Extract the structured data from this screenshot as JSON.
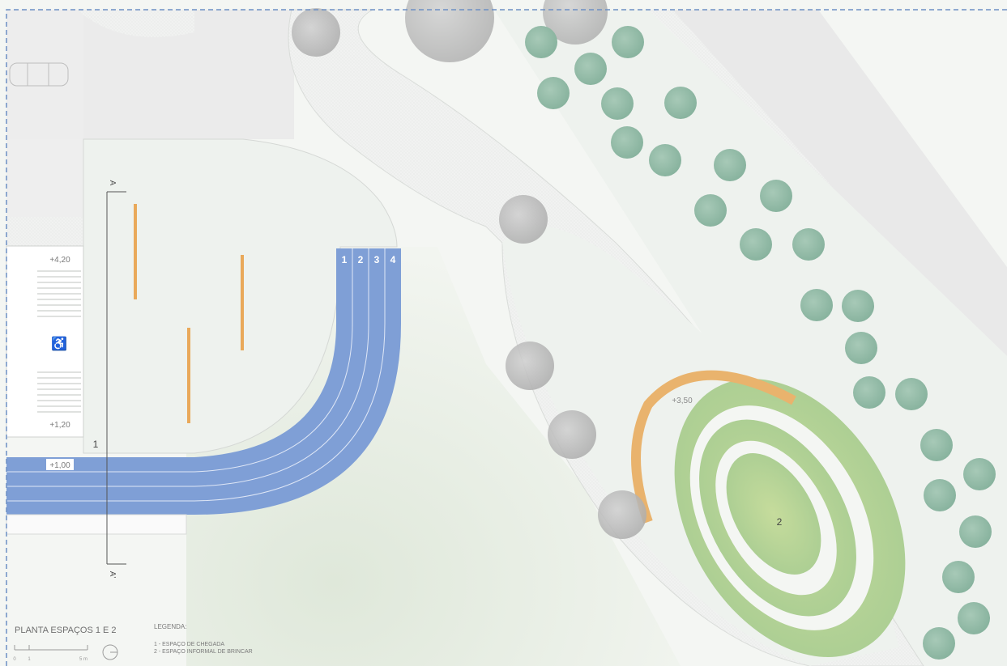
{
  "plan": {
    "title": "PLANTA ESPAÇOS 1 E 2",
    "legend_heading": "LEGENDA:",
    "legend_items": [
      "1 - ESPAÇO DE CHEGADA",
      "2 - ESPAÇO INFORMAL DE BRINCAR"
    ],
    "scale_labels": [
      "0",
      "1",
      "5 m"
    ]
  },
  "levels": [
    "+4,20",
    "+1,20",
    "+1,00",
    "+3,50"
  ],
  "lane_numbers": [
    "1",
    "2",
    "3",
    "4"
  ],
  "space_labels": [
    "1",
    "2"
  ],
  "section_marks": [
    "A",
    "A'"
  ],
  "colors": {
    "track_blue": "#7f9fd6",
    "lane_line": "#dfe7f6",
    "wood_orange": "#e9a95a",
    "tree_green": "#8fb9a5",
    "tree_grey": "#b9b9b9",
    "meadow_green": "#b8d49a",
    "paved_light": "#eef1ee",
    "road_grey": "#ececec",
    "border_dash": "#6d8fc4"
  },
  "icons": [
    "north-arrow-icon",
    "car-icon",
    "stairs-icon"
  ]
}
